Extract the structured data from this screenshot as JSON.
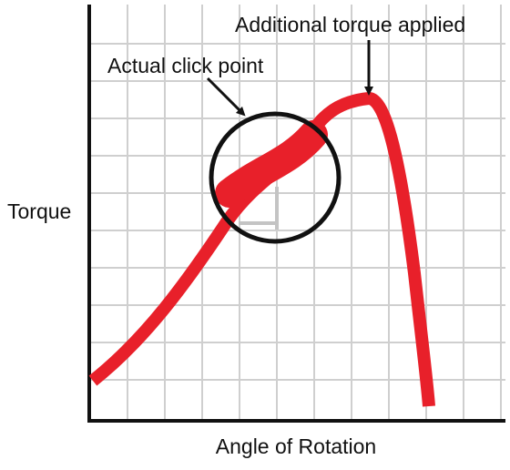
{
  "axes": {
    "y_label": "Torque",
    "x_label": "Angle of Rotation"
  },
  "annotations": [
    {
      "label": "Actual click point"
    },
    {
      "label": "Additional torque applied"
    }
  ]
}
